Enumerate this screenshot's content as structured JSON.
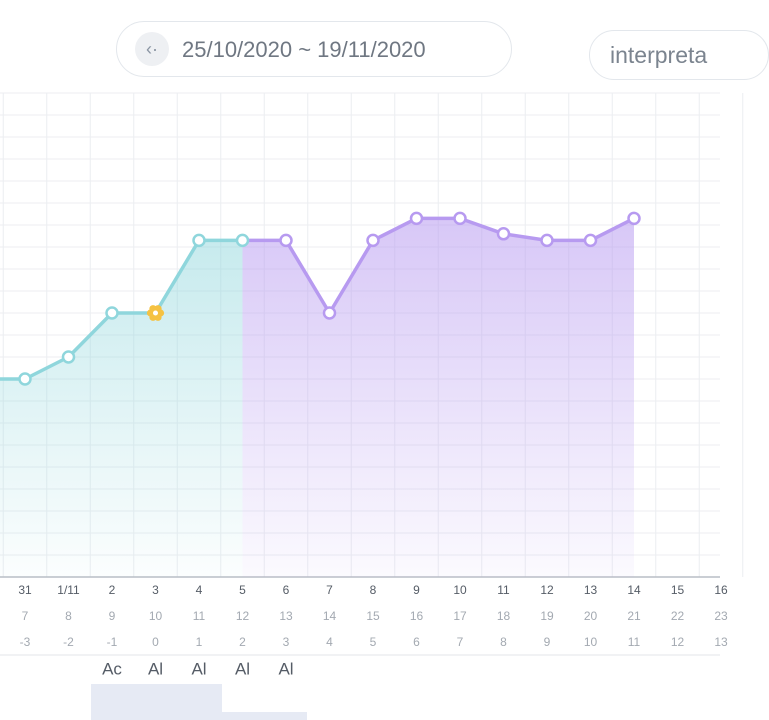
{
  "header": {
    "date_range": "25/10/2020 ~ 19/11/2020",
    "button": "interpreta"
  },
  "chart_data": {
    "type": "line",
    "categories": [
      null,
      "31",
      "1/11",
      "2",
      "3",
      "4",
      "5",
      "6",
      "7",
      "8",
      "9",
      "10",
      "11",
      "12",
      "13",
      "14",
      "15",
      "16"
    ],
    "cycle_days": [
      null,
      7,
      8,
      9,
      10,
      11,
      12,
      13,
      14,
      15,
      16,
      17,
      18,
      19,
      20,
      21,
      22,
      23
    ],
    "phase_days": [
      null,
      -3,
      -2,
      -1,
      0,
      1,
      2,
      3,
      4,
      5,
      6,
      7,
      8,
      9,
      10,
      11,
      12,
      13
    ],
    "series": [
      {
        "color": "#8fd6dc",
        "values": [
          9,
          9,
          10,
          12,
          12,
          15.3,
          15.3,
          null,
          null,
          null,
          null,
          null,
          null,
          null,
          null,
          null,
          null,
          null
        ]
      },
      {
        "color": "#b79af0",
        "values": [
          null,
          null,
          null,
          null,
          null,
          null,
          15.3,
          15.3,
          12,
          15.3,
          16.3,
          16.3,
          15.6,
          15.3,
          15.3,
          16.3,
          null,
          null
        ]
      }
    ],
    "highlight": {
      "index": 4,
      "color": "#f5c242"
    },
    "tests": [
      null,
      null,
      null,
      "Ac",
      "Al",
      "Al",
      "Al",
      "Al",
      null,
      null,
      null,
      null,
      null,
      null,
      null,
      null,
      null,
      null
    ],
    "ylim": [
      0,
      22
    ],
    "yticks": [
      0,
      1,
      2,
      3,
      4,
      5,
      6,
      7,
      8,
      9,
      10,
      11,
      12,
      13,
      14,
      15,
      16,
      17,
      18,
      19,
      20,
      21,
      22
    ],
    "grid": true
  }
}
